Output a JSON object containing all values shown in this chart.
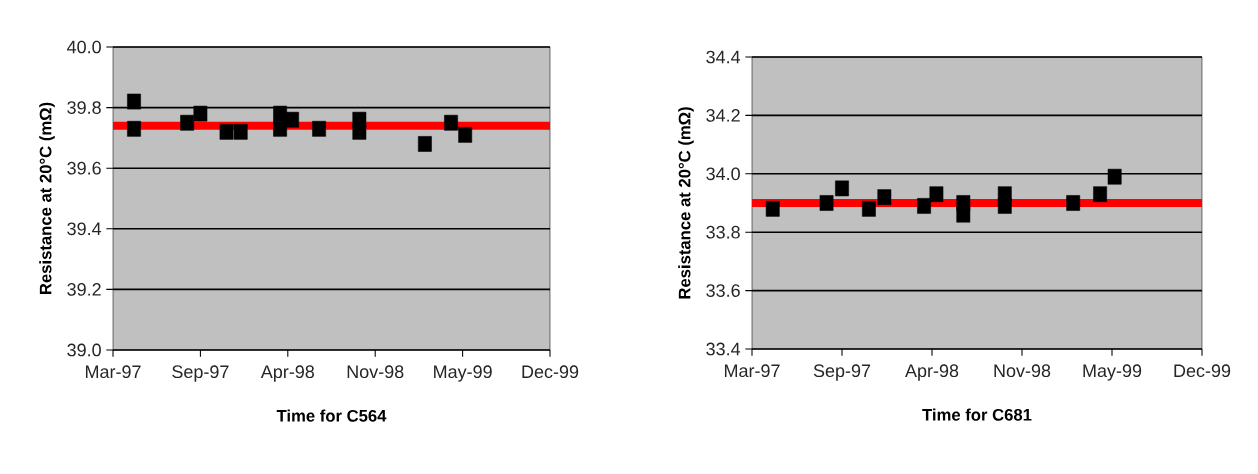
{
  "chart_data": [
    {
      "type": "scatter",
      "xlabel": "Time for C564",
      "ylabel": "Resistance at 20°C (mΩ)",
      "color": "#000000",
      "marker": "square",
      "grid": "y",
      "x": [
        "1997-04-19",
        "1997-04-19",
        "1997-08-21",
        "1997-09-21",
        "1997-11-21",
        "1997-12-24",
        "1998-03-26",
        "1998-03-26",
        "1998-04-23",
        "1998-06-25",
        "1998-09-27",
        "1998-09-27",
        "1999-02-27",
        "1999-04-29",
        "1999-06-01"
      ],
      "values": [
        39.82,
        39.73,
        39.75,
        39.78,
        39.72,
        39.72,
        39.78,
        39.73,
        39.76,
        39.73,
        39.76,
        39.72,
        39.68,
        39.75,
        39.71
      ],
      "xlim": [
        "1997-03-01",
        "1999-12-16"
      ],
      "xticks": [
        {
          "value": "1997-03-01",
          "label": "Mar-97"
        },
        {
          "value": "1997-09-21",
          "label": "Sep-97"
        },
        {
          "value": "1998-04-13",
          "label": "Apr-98"
        },
        {
          "value": "1998-11-03",
          "label": "Nov-98"
        },
        {
          "value": "1999-05-26",
          "label": "May-99"
        },
        {
          "value": "1999-12-16",
          "label": "Dec-99"
        }
      ],
      "ylim": [
        39.0,
        40.0
      ],
      "yticks": [
        {
          "value": 39.0,
          "label": "39.0"
        },
        {
          "value": 39.2,
          "label": "39.2"
        },
        {
          "value": 39.4,
          "label": "39.4"
        },
        {
          "value": 39.6,
          "label": "39.6"
        },
        {
          "value": 39.8,
          "label": "39.8"
        },
        {
          "value": 40.0,
          "label": "40.0"
        }
      ],
      "ref_lines": [
        {
          "axis": "y",
          "value": 39.74,
          "color": "#ff0000"
        }
      ]
    },
    {
      "type": "scatter",
      "xlabel": "Time for C681",
      "ylabel": "Resistance at 20°C (mΩ)",
      "color": "#000000",
      "marker": "square",
      "grid": "y",
      "x": [
        "1997-04-17",
        "1997-08-17",
        "1997-09-21",
        "1997-11-21",
        "1997-12-26",
        "1998-03-26",
        "1998-04-23",
        "1998-06-23",
        "1998-06-23",
        "1998-09-25",
        "1998-09-25",
        "1999-02-27",
        "1999-04-29",
        "1999-06-01"
      ],
      "values": [
        33.88,
        33.9,
        33.95,
        33.88,
        33.92,
        33.89,
        33.93,
        33.9,
        33.86,
        33.93,
        33.89,
        33.9,
        33.93,
        33.99
      ],
      "xlim": [
        "1997-03-01",
        "1999-12-16"
      ],
      "xticks": [
        {
          "value": "1997-03-01",
          "label": "Mar-97"
        },
        {
          "value": "1997-09-21",
          "label": "Sep-97"
        },
        {
          "value": "1998-04-13",
          "label": "Apr-98"
        },
        {
          "value": "1998-11-03",
          "label": "Nov-98"
        },
        {
          "value": "1999-05-26",
          "label": "May-99"
        },
        {
          "value": "1999-12-16",
          "label": "Dec-99"
        }
      ],
      "ylim": [
        33.4,
        34.4
      ],
      "yticks": [
        {
          "value": 33.4,
          "label": "33.4"
        },
        {
          "value": 33.6,
          "label": "33.6"
        },
        {
          "value": 33.8,
          "label": "33.8"
        },
        {
          "value": 34.0,
          "label": "34.0"
        },
        {
          "value": 34.2,
          "label": "34.2"
        },
        {
          "value": 34.4,
          "label": "34.4"
        }
      ],
      "ref_lines": [
        {
          "axis": "y",
          "value": 33.9,
          "color": "#ff0000"
        }
      ]
    }
  ]
}
